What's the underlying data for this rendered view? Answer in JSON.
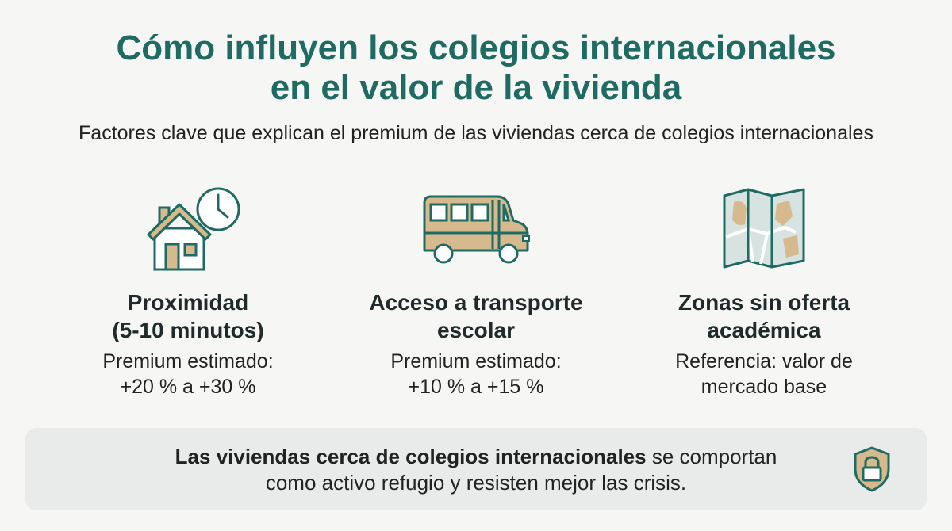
{
  "title": {
    "line1": "Cómo influyen los colegios internacionales",
    "line2": "en el valor de la vivienda"
  },
  "subtitle": "Factores clave que explican el premium de las viviendas cerca de colegios internacionales",
  "factors": [
    {
      "icon": "house-clock-icon",
      "heading_line1": "Proximidad",
      "heading_line2": "(5-10 minutos)",
      "detail_line1": "Premium estimado:",
      "detail_line2": "+20 % a +30 %"
    },
    {
      "icon": "school-bus-icon",
      "heading_line1": "Acceso a transporte",
      "heading_line2": "escolar",
      "detail_line1": "Premium estimado:",
      "detail_line2": "+10 % a +15 %"
    },
    {
      "icon": "map-icon",
      "heading_line1": "Zonas sin oferta",
      "heading_line2": "académica",
      "detail_line1": "Referencia: valor de",
      "detail_line2": "mercado base"
    }
  ],
  "banner": {
    "bold_text": "Las viviendas cerca de colegios internacionales",
    "rest_line1": " se comportan",
    "line2": "como activo refugio y resisten mejor las crisis.",
    "icon": "shield-lock-icon"
  },
  "colors": {
    "teal": "#1e6b63",
    "tan": "#d6b98c",
    "map_gray": "#d7e3e1"
  }
}
